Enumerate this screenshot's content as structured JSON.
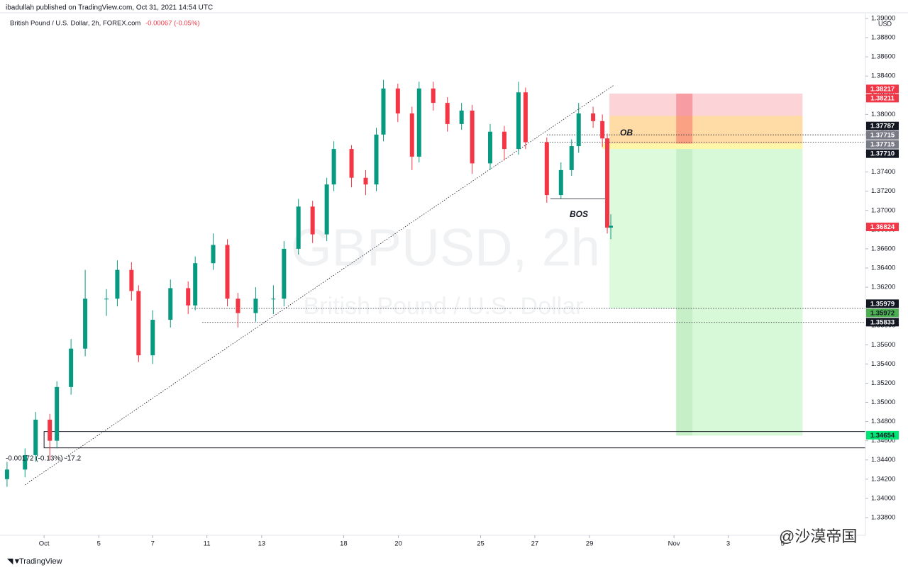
{
  "chart_data": {
    "type": "candlestick",
    "published": "ibadullah published on TradingView.com, Oct 31, 2021 14:54 UTC",
    "title": "British Pound / U.S. Dollar, 2h, FOREX.com",
    "change": "-0.00067 (-0.05%)",
    "currency": "USD",
    "watermark": "GBPUSD, 2h",
    "watermark_subtitle": "British Pound / U.S. Dollar",
    "footer": "TradingView",
    "credit": "@沙漠帝国",
    "annotations": [
      "OB",
      "BOS",
      "-0.00172 (-0.13%) -17.2"
    ],
    "up_color": "#089981",
    "down_color": "#f23645",
    "x": [
      -1.36,
      -0.7,
      -0.31,
      0.21,
      0.47,
      0.99,
      1.51,
      2.29,
      2.69,
      3.21,
      3.47,
      3.99,
      4.64,
      5.29,
      5.55,
      6.21,
      6.73,
      7.12,
      7.77,
      8.42,
      8.81,
      9.34,
      9.86,
      10.38,
      10.64,
      11.29,
      11.81,
      12.2,
      12.46,
      12.99,
      13.51,
      13.77,
      14.29,
      14.81,
      15.33,
      15.72,
      16.38,
      16.9,
      17.42,
      17.68,
      18.46,
      18.98,
      19.37,
      19.63,
      20.16,
      20.5,
      20.68,
      20.81
    ],
    "open": [
      1.342,
      1.343,
      1.3445,
      1.3482,
      1.346,
      1.3516,
      1.3556,
      1.3608,
      1.3608,
      1.3638,
      1.3616,
      1.3549,
      1.3586,
      1.3619,
      1.3601,
      1.3645,
      1.3664,
      1.3608,
      1.3593,
      1.3608,
      1.3608,
      1.366,
      1.3704,
      1.3675,
      1.3727,
      1.3764,
      1.3734,
      1.3727,
      1.3779,
      1.3827,
      1.3801,
      1.3756,
      1.3827,
      1.3812,
      1.379,
      1.3804,
      1.3749,
      1.3782,
      1.3764,
      1.3823,
      1.3771,
      1.3716,
      1.3742,
      1.3767,
      1.3801,
      1.3793,
      1.3775,
      1.3682
    ],
    "high": [
      1.3438,
      1.3452,
      1.349,
      1.3488,
      1.3522,
      1.3566,
      1.3638,
      1.3618,
      1.3648,
      1.3646,
      1.3622,
      1.3596,
      1.3628,
      1.3626,
      1.3652,
      1.3676,
      1.367,
      1.3614,
      1.362,
      1.3622,
      1.3668,
      1.3712,
      1.371,
      1.3734,
      1.3772,
      1.3768,
      1.3742,
      1.3786,
      1.3836,
      1.3832,
      1.3808,
      1.3834,
      1.3834,
      1.3818,
      1.3812,
      1.381,
      1.379,
      1.3788,
      1.3834,
      1.3828,
      1.3776,
      1.375,
      1.3774,
      1.3812,
      1.3808,
      1.38,
      1.378,
      1.3696
    ],
    "low": [
      1.3412,
      1.3422,
      1.3438,
      1.344,
      1.3452,
      1.3508,
      1.3548,
      1.359,
      1.36,
      1.3606,
      1.3542,
      1.354,
      1.3578,
      1.3592,
      1.3596,
      1.3638,
      1.36,
      1.3578,
      1.3584,
      1.3592,
      1.36,
      1.3654,
      1.3666,
      1.3668,
      1.372,
      1.3724,
      1.3716,
      1.372,
      1.3772,
      1.3792,
      1.3742,
      1.375,
      1.3804,
      1.3782,
      1.3784,
      1.3738,
      1.3742,
      1.3752,
      1.3758,
      1.3764,
      1.3708,
      1.3712,
      1.3736,
      1.376,
      1.3786,
      1.3766,
      1.3676,
      1.367
    ],
    "close": [
      1.343,
      1.3445,
      1.3482,
      1.346,
      1.3516,
      1.3556,
      1.3608,
      1.3608,
      1.3638,
      1.3616,
      1.3549,
      1.3586,
      1.3619,
      1.3601,
      1.3645,
      1.3664,
      1.3608,
      1.3593,
      1.3608,
      1.3608,
      1.366,
      1.3704,
      1.3675,
      1.3727,
      1.3764,
      1.3734,
      1.3727,
      1.3779,
      1.3827,
      1.3801,
      1.3756,
      1.3827,
      1.3812,
      1.379,
      1.3804,
      1.3749,
      1.3782,
      1.3764,
      1.3823,
      1.3771,
      1.3716,
      1.3742,
      1.3767,
      1.3801,
      1.3793,
      1.3775,
      1.3682,
      1.3684
    ],
    "xlim": [
      -1.41,
      30.16
    ],
    "ylim": [
      1.33615,
      1.39059
    ],
    "xticks": [
      {
        "value": 0,
        "label": "Oct"
      },
      {
        "value": 2.01,
        "label": "5"
      },
      {
        "value": 3.99,
        "label": "7"
      },
      {
        "value": 5.98,
        "label": "11"
      },
      {
        "value": 7.99,
        "label": "13"
      },
      {
        "value": 11.0,
        "label": "18"
      },
      {
        "value": 13.01,
        "label": "20"
      },
      {
        "value": 16.03,
        "label": "25"
      },
      {
        "value": 18.02,
        "label": "27"
      },
      {
        "value": 20.03,
        "label": "29"
      },
      {
        "value": 23.13,
        "label": "Nov"
      },
      {
        "value": 25.12,
        "label": "3"
      },
      {
        "value": 27.12,
        "label": "5"
      }
    ],
    "yticks": [
      {
        "value": 1.338,
        "label": "1.33800"
      },
      {
        "value": 1.34,
        "label": "1.34000"
      },
      {
        "value": 1.342,
        "label": "1.34200"
      },
      {
        "value": 1.344,
        "label": "1.34400"
      },
      {
        "value": 1.346,
        "label": "1.34600"
      },
      {
        "value": 1.348,
        "label": "1.34800"
      },
      {
        "value": 1.35,
        "label": "1.35000"
      },
      {
        "value": 1.352,
        "label": "1.35200"
      },
      {
        "value": 1.354,
        "label": "1.35400"
      },
      {
        "value": 1.356,
        "label": "1.35600"
      },
      {
        "value": 1.358,
        "label": "1.35800"
      },
      {
        "value": 1.36,
        "label": "1.36000"
      },
      {
        "value": 1.362,
        "label": "1.36200"
      },
      {
        "value": 1.364,
        "label": "1.36400"
      },
      {
        "value": 1.366,
        "label": "1.36600"
      },
      {
        "value": 1.368,
        "label": "1.36800"
      },
      {
        "value": 1.37,
        "label": "1.37000"
      },
      {
        "value": 1.372,
        "label": "1.37200"
      },
      {
        "value": 1.374,
        "label": "1.37400"
      },
      {
        "value": 1.376,
        "label": "1.37600"
      },
      {
        "value": 1.378,
        "label": "1.37800"
      },
      {
        "value": 1.38,
        "label": "1.38000"
      },
      {
        "value": 1.382,
        "label": "1.38200"
      },
      {
        "value": 1.384,
        "label": "1.38400"
      },
      {
        "value": 1.386,
        "label": "1.38600"
      },
      {
        "value": 1.388,
        "label": "1.38800"
      },
      {
        "value": 1.39,
        "label": "1.39000"
      }
    ],
    "grid": false,
    "zones": [
      {
        "x": [
          20.76,
          27.85
        ],
        "y": [
          1.37985,
          1.38217
        ],
        "color": "rgba(242,54,69,0.22)"
      },
      {
        "x": [
          20.76,
          27.85
        ],
        "y": [
          1.37696,
          1.37985
        ],
        "color": "rgba(255,152,0,0.35)"
      },
      {
        "x": [
          20.5,
          27.85
        ],
        "y": [
          1.3764,
          1.37696
        ],
        "color": "rgba(255,235,59,0.45)"
      },
      {
        "x": [
          20.76,
          23.21
        ],
        "y": [
          1.35979,
          1.3764
        ],
        "color": "rgba(144,238,144,0.30)"
      },
      {
        "x": [
          23.21,
          27.85
        ],
        "y": [
          1.34654,
          1.3764
        ],
        "color": "rgba(144,238,144,0.35)"
      },
      {
        "x": [
          23.21,
          23.81
        ],
        "y": [
          1.37696,
          1.38217
        ],
        "color": "rgba(242,54,69,0.35)"
      },
      {
        "x": [
          23.21,
          23.81
        ],
        "y": [
          1.34654,
          1.3764
        ],
        "color": "rgba(76,175,80,0.12)"
      }
    ],
    "box": {
      "x": [
        0,
        30.16
      ],
      "y": [
        1.34526,
        1.34696
      ]
    },
    "lines": [
      {
        "x": [
          -0.7,
          20.9
        ],
        "y": [
          1.34141,
          1.383
        ],
        "style": "dotted"
      },
      {
        "x": [
          18.46,
          30.16
        ],
        "y": [
          1.37787,
          1.37787
        ],
        "style": "dotted"
      },
      {
        "x": [
          18.2,
          30.16
        ],
        "y": [
          1.3771,
          1.3771
        ],
        "style": "dotted"
      },
      {
        "x": [
          5.42,
          30.16
        ],
        "y": [
          1.35979,
          1.35979
        ],
        "style": "dotted"
      },
      {
        "x": [
          5.81,
          30.16
        ],
        "y": [
          1.35833,
          1.35833
        ],
        "style": "dotted"
      },
      {
        "x": [
          18.59,
          20.6
        ],
        "y": [
          1.3712,
          1.3712
        ],
        "style": "solid"
      }
    ],
    "price_labels": [
      {
        "value": 1.38217,
        "color": "#f23645"
      },
      {
        "value": 1.38211,
        "color": "#f23645"
      },
      {
        "value": 1.37787,
        "color": "#131722"
      },
      {
        "value": 1.37715,
        "color": "#787b86"
      },
      {
        "value": 1.37715,
        "color": "#787b86"
      },
      {
        "value": 1.3771,
        "label": "1.37710",
        "color": "#131722"
      },
      {
        "value": 1.36824,
        "color": "#f23645"
      },
      {
        "value": 1.35979,
        "color": "#131722"
      },
      {
        "value": 1.35972,
        "color": "#4caf50"
      },
      {
        "value": 1.35833,
        "color": "#131722"
      },
      {
        "value": 1.34654,
        "color": "#00e676"
      }
    ]
  }
}
